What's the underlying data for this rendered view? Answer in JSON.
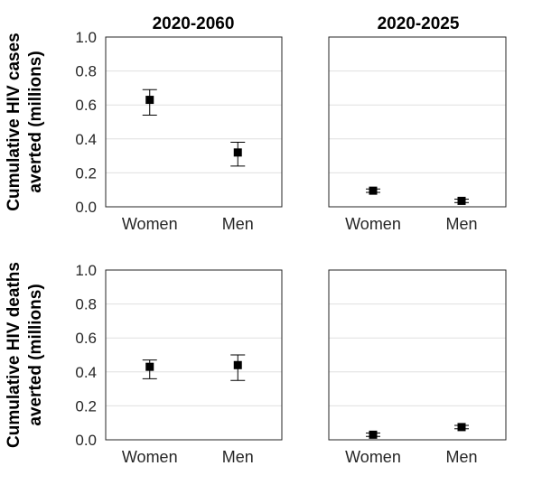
{
  "column_titles": [
    "2020-2060",
    "2020-2025"
  ],
  "row_ylabels": [
    [
      "Cumulative HIV cases",
      "averted (millions)"
    ],
    [
      "Cumulative HIV deaths",
      "averted (millions)"
    ]
  ],
  "colors": {
    "marker": "#000000",
    "error_bar": "#000000",
    "axes": "#262626",
    "grid": "#e0e0e0"
  },
  "chart_data": [
    {
      "type": "scatter",
      "title": "2020-2060",
      "ylabel": "Cumulative HIV cases averted (millions)",
      "categories": [
        "Women",
        "Men"
      ],
      "values": [
        0.63,
        0.32
      ],
      "error_low": [
        0.54,
        0.24
      ],
      "error_high": [
        0.69,
        0.38
      ],
      "ylim": [
        0,
        1.0
      ],
      "yticks": [
        "0.0",
        "0.2",
        "0.4",
        "0.6",
        "0.8",
        "1.0"
      ],
      "grid": true
    },
    {
      "type": "scatter",
      "title": "2020-2025",
      "ylabel": "",
      "categories": [
        "Women",
        "Men"
      ],
      "values": [
        0.095,
        0.035
      ],
      "error_low": [
        0.085,
        0.025
      ],
      "error_high": [
        0.105,
        0.045
      ],
      "ylim": [
        0,
        1.0
      ],
      "yticks": [],
      "grid": true
    },
    {
      "type": "scatter",
      "title": "",
      "ylabel": "Cumulative HIV deaths averted (millions)",
      "categories": [
        "Women",
        "Men"
      ],
      "values": [
        0.43,
        0.44
      ],
      "error_low": [
        0.36,
        0.35
      ],
      "error_high": [
        0.47,
        0.5
      ],
      "ylim": [
        0,
        1.0
      ],
      "yticks": [
        "0.0",
        "0.2",
        "0.4",
        "0.6",
        "0.8",
        "1.0"
      ],
      "grid": true
    },
    {
      "type": "scatter",
      "title": "",
      "ylabel": "",
      "categories": [
        "Women",
        "Men"
      ],
      "values": [
        0.03,
        0.075
      ],
      "error_low": [
        0.02,
        0.065
      ],
      "error_high": [
        0.04,
        0.085
      ],
      "ylim": [
        0,
        1.0
      ],
      "yticks": [],
      "grid": true
    }
  ]
}
